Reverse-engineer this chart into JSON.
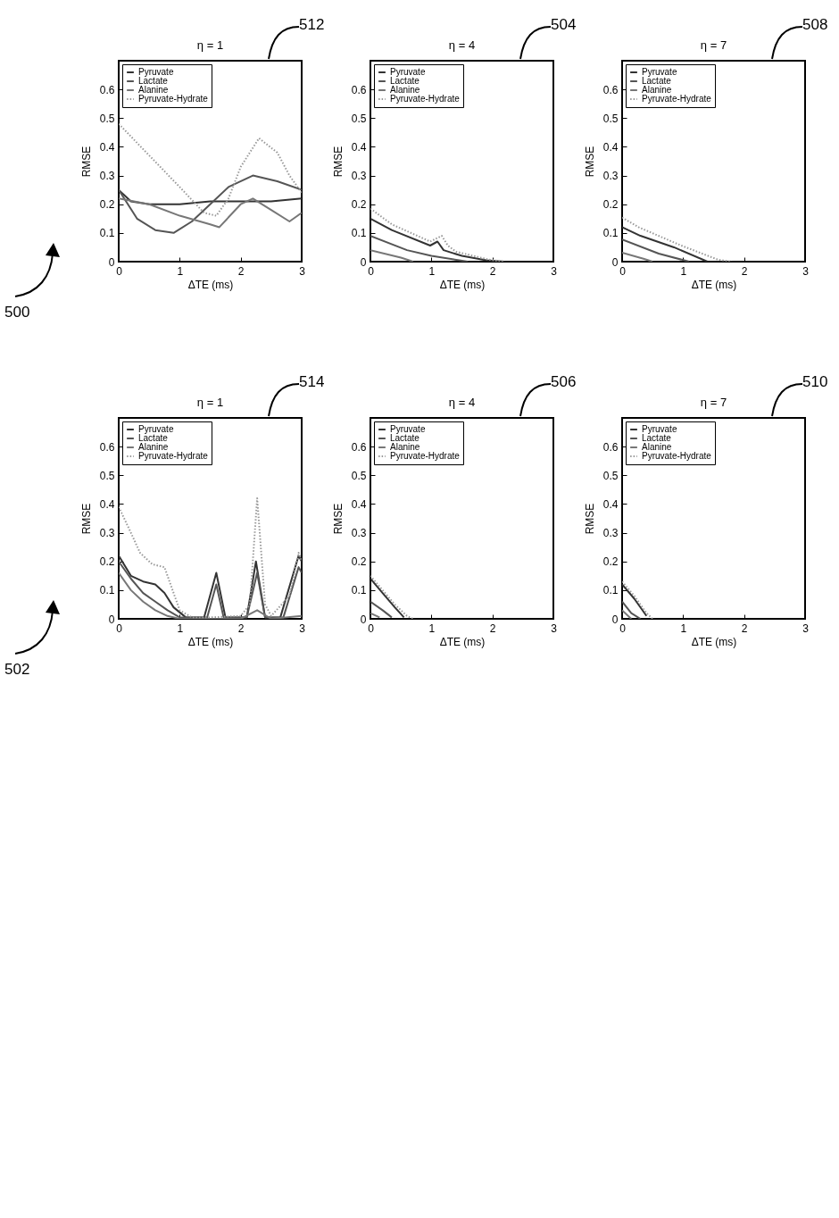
{
  "chart_data": [
    {
      "type": "line",
      "title": "η = 1",
      "xlabel": "ΔTE (ms)",
      "ylabel": "RMSE",
      "xlim": [
        0,
        3
      ],
      "ylim": [
        0,
        0.7
      ],
      "xticks": [
        0,
        1,
        2,
        3
      ],
      "yticks": [
        0,
        0.1,
        0.2,
        0.3,
        0.4,
        0.5,
        0.6
      ],
      "legend": "top left",
      "annotations": [
        "512",
        "500"
      ],
      "series": [
        {
          "name": "Pyruvate",
          "color": "#333333",
          "x": [
            0,
            0.2,
            0.5,
            1,
            1.5,
            2,
            2.5,
            3
          ],
          "values": [
            0.25,
            0.21,
            0.2,
            0.2,
            0.21,
            0.21,
            0.21,
            0.22
          ]
        },
        {
          "name": "Lactate",
          "color": "#555555",
          "x": [
            0,
            0.3,
            0.6,
            0.9,
            1.2,
            1.5,
            1.8,
            2.2,
            2.6,
            3
          ],
          "values": [
            0.25,
            0.15,
            0.11,
            0.1,
            0.14,
            0.2,
            0.26,
            0.3,
            0.28,
            0.25
          ]
        },
        {
          "name": "Alanine",
          "color": "#777777",
          "x": [
            0,
            0.5,
            1,
            1.5,
            1.65,
            2,
            2.2,
            2.5,
            2.8,
            3
          ],
          "values": [
            0.22,
            0.2,
            0.16,
            0.13,
            0.12,
            0.2,
            0.22,
            0.18,
            0.14,
            0.17
          ]
        },
        {
          "name": "Pyruvate-Hydrate",
          "color": "#999999",
          "line_style": "dotted",
          "x": [
            0,
            0.5,
            1,
            1.4,
            1.6,
            1.8,
            2,
            2.3,
            2.6,
            2.8,
            3
          ],
          "values": [
            0.48,
            0.37,
            0.26,
            0.17,
            0.16,
            0.22,
            0.33,
            0.43,
            0.38,
            0.3,
            0.24
          ]
        }
      ]
    },
    {
      "type": "line",
      "title": "η = 4",
      "xlabel": "ΔTE (ms)",
      "ylabel": "RMSE",
      "xlim": [
        0,
        3
      ],
      "ylim": [
        0,
        0.7
      ],
      "xticks": [
        0,
        1,
        2,
        3
      ],
      "yticks": [
        0,
        0.1,
        0.2,
        0.3,
        0.4,
        0.5,
        0.6
      ],
      "legend": "top left",
      "annotations": [
        "504"
      ],
      "series": [
        {
          "name": "Pyruvate",
          "color": "#333333",
          "x": [
            0,
            0.35,
            0.98,
            1.1,
            1.2,
            1.5,
            1.9,
            2.2
          ],
          "values": [
            0.15,
            0.11,
            0.056,
            0.07,
            0.04,
            0.02,
            0.005,
            0
          ]
        },
        {
          "name": "Lactate",
          "color": "#555555",
          "x": [
            0,
            0.6,
            1,
            1.6
          ],
          "values": [
            0.09,
            0.04,
            0.02,
            0
          ]
        },
        {
          "name": "Alanine",
          "color": "#777777",
          "x": [
            0,
            0.5,
            0.7
          ],
          "values": [
            0.04,
            0.014,
            0
          ]
        },
        {
          "name": "Pyruvate-Hydrate",
          "color": "#999999",
          "line_style": "dotted",
          "x": [
            0,
            0.35,
            0.98,
            1.17,
            1.27,
            1.4,
            1.94,
            2.2
          ],
          "values": [
            0.185,
            0.13,
            0.07,
            0.09,
            0.056,
            0.035,
            0.007,
            0
          ]
        }
      ]
    },
    {
      "type": "line",
      "title": "η = 7",
      "xlabel": "ΔTE (ms)",
      "ylabel": "RMSE",
      "xlim": [
        0,
        3
      ],
      "ylim": [
        0,
        0.7
      ],
      "xticks": [
        0,
        1,
        2,
        3
      ],
      "yticks": [
        0,
        0.1,
        0.2,
        0.3,
        0.4,
        0.5,
        0.6
      ],
      "legend": "top left",
      "annotations": [
        "508"
      ],
      "series": [
        {
          "name": "Pyruvate",
          "color": "#333333",
          "x": [
            0,
            0.3,
            0.85,
            1.4
          ],
          "values": [
            0.12,
            0.09,
            0.05,
            0
          ]
        },
        {
          "name": "Lactate",
          "color": "#555555",
          "x": [
            0,
            0.6,
            1.1
          ],
          "values": [
            0.077,
            0.028,
            0
          ]
        },
        {
          "name": "Alanine",
          "color": "#777777",
          "x": [
            0,
            0.35,
            0.5
          ],
          "values": [
            0.031,
            0.01,
            0
          ]
        },
        {
          "name": "Pyruvate-Hydrate",
          "color": "#999999",
          "line_style": "dotted",
          "x": [
            0,
            0.27,
            0.97,
            1.57,
            1.8
          ],
          "values": [
            0.154,
            0.12,
            0.056,
            0.007,
            0
          ]
        }
      ]
    },
    {
      "type": "line",
      "title": "η = 1",
      "xlabel": "ΔTE (ms)",
      "ylabel": "RMSE",
      "xlim": [
        0,
        3
      ],
      "ylim": [
        0,
        0.7
      ],
      "xticks": [
        0,
        1,
        2,
        3
      ],
      "yticks": [
        0,
        0.1,
        0.2,
        0.3,
        0.4,
        0.5,
        0.6
      ],
      "legend": "top left",
      "annotations": [
        "514",
        "502"
      ],
      "series": [
        {
          "name": "Pyruvate",
          "color": "#333333",
          "x": [
            0,
            0.2,
            0.4,
            0.6,
            0.75,
            0.9,
            1.1,
            1.4,
            1.6,
            1.75,
            2.1,
            2.25,
            2.4,
            2.65,
            2.95,
            3
          ],
          "values": [
            0.22,
            0.15,
            0.13,
            0.12,
            0.09,
            0.04,
            0.005,
            0.005,
            0.16,
            0.005,
            0.005,
            0.2,
            0.005,
            0.005,
            0.22,
            0.2
          ]
        },
        {
          "name": "Lactate",
          "color": "#555555",
          "x": [
            0,
            0.2,
            0.4,
            0.6,
            0.8,
            1,
            1.45,
            1.6,
            1.72,
            2.1,
            2.27,
            2.4,
            2.7,
            2.95,
            3
          ],
          "values": [
            0.2,
            0.14,
            0.09,
            0.06,
            0.03,
            0.005,
            0.005,
            0.12,
            0.005,
            0.005,
            0.16,
            0.005,
            0.005,
            0.18,
            0.16
          ]
        },
        {
          "name": "Alanine",
          "color": "#777777",
          "x": [
            0,
            0.2,
            0.4,
            0.6,
            0.8,
            1,
            2,
            2.27,
            2.5,
            3
          ],
          "values": [
            0.16,
            0.1,
            0.06,
            0.03,
            0.01,
            0,
            0,
            0.03,
            0,
            0.01
          ]
        },
        {
          "name": "Pyruvate-Hydrate",
          "color": "#999999",
          "line_style": "dotted",
          "x": [
            0,
            0.2,
            0.35,
            0.55,
            0.75,
            0.85,
            1,
            1.2,
            1.5,
            2,
            2.15,
            2.27,
            2.4,
            2.5,
            2.8,
            2.95,
            3
          ],
          "values": [
            0.39,
            0.3,
            0.23,
            0.19,
            0.18,
            0.12,
            0.03,
            0.005,
            0.005,
            0.01,
            0.05,
            0.42,
            0.05,
            0.01,
            0.08,
            0.23,
            0.2
          ]
        }
      ]
    },
    {
      "type": "line",
      "title": "η = 4",
      "xlabel": "ΔTE (ms)",
      "ylabel": "RMSE",
      "xlim": [
        0,
        3
      ],
      "ylim": [
        0,
        0.7
      ],
      "xticks": [
        0,
        1,
        2,
        3
      ],
      "yticks": [
        0,
        0.1,
        0.2,
        0.3,
        0.4,
        0.5,
        0.6
      ],
      "legend": "top left",
      "annotations": [
        "506"
      ],
      "series": [
        {
          "name": "Pyruvate",
          "color": "#333333",
          "x": [
            0,
            0.2,
            0.4,
            0.55
          ],
          "values": [
            0.14,
            0.09,
            0.04,
            0.005
          ]
        },
        {
          "name": "Lactate",
          "color": "#555555",
          "x": [
            0,
            0.2,
            0.35
          ],
          "values": [
            0.06,
            0.03,
            0.005
          ]
        },
        {
          "name": "Alanine",
          "color": "#777777",
          "x": [
            0,
            0.15
          ],
          "values": [
            0.02,
            0.005
          ]
        },
        {
          "name": "Pyruvate-Hydrate",
          "color": "#999999",
          "line_style": "dotted",
          "x": [
            0,
            0.2,
            0.4,
            0.6,
            0.7
          ],
          "values": [
            0.15,
            0.1,
            0.05,
            0.01,
            0
          ]
        }
      ]
    },
    {
      "type": "line",
      "title": "η = 7",
      "xlabel": "ΔTE (ms)",
      "ylabel": "RMSE",
      "xlim": [
        0,
        3
      ],
      "ylim": [
        0,
        0.7
      ],
      "xticks": [
        0,
        1,
        2,
        3
      ],
      "yticks": [
        0,
        0.1,
        0.2,
        0.3,
        0.4,
        0.5,
        0.6
      ],
      "legend": "top left",
      "annotations": [
        "510"
      ],
      "series": [
        {
          "name": "Pyruvate",
          "color": "#333333",
          "x": [
            0,
            0.2,
            0.4
          ],
          "values": [
            0.12,
            0.07,
            0.01
          ]
        },
        {
          "name": "Lactate",
          "color": "#555555",
          "x": [
            0,
            0.15,
            0.3
          ],
          "values": [
            0.06,
            0.02,
            0
          ]
        },
        {
          "name": "Alanine",
          "color": "#777777",
          "x": [
            0,
            0.15
          ],
          "values": [
            0.03,
            0
          ]
        },
        {
          "name": "Pyruvate-Hydrate",
          "color": "#999999",
          "line_style": "dotted",
          "x": [
            0,
            0.2,
            0.4,
            0.5
          ],
          "values": [
            0.13,
            0.08,
            0.02,
            0
          ]
        }
      ]
    }
  ]
}
